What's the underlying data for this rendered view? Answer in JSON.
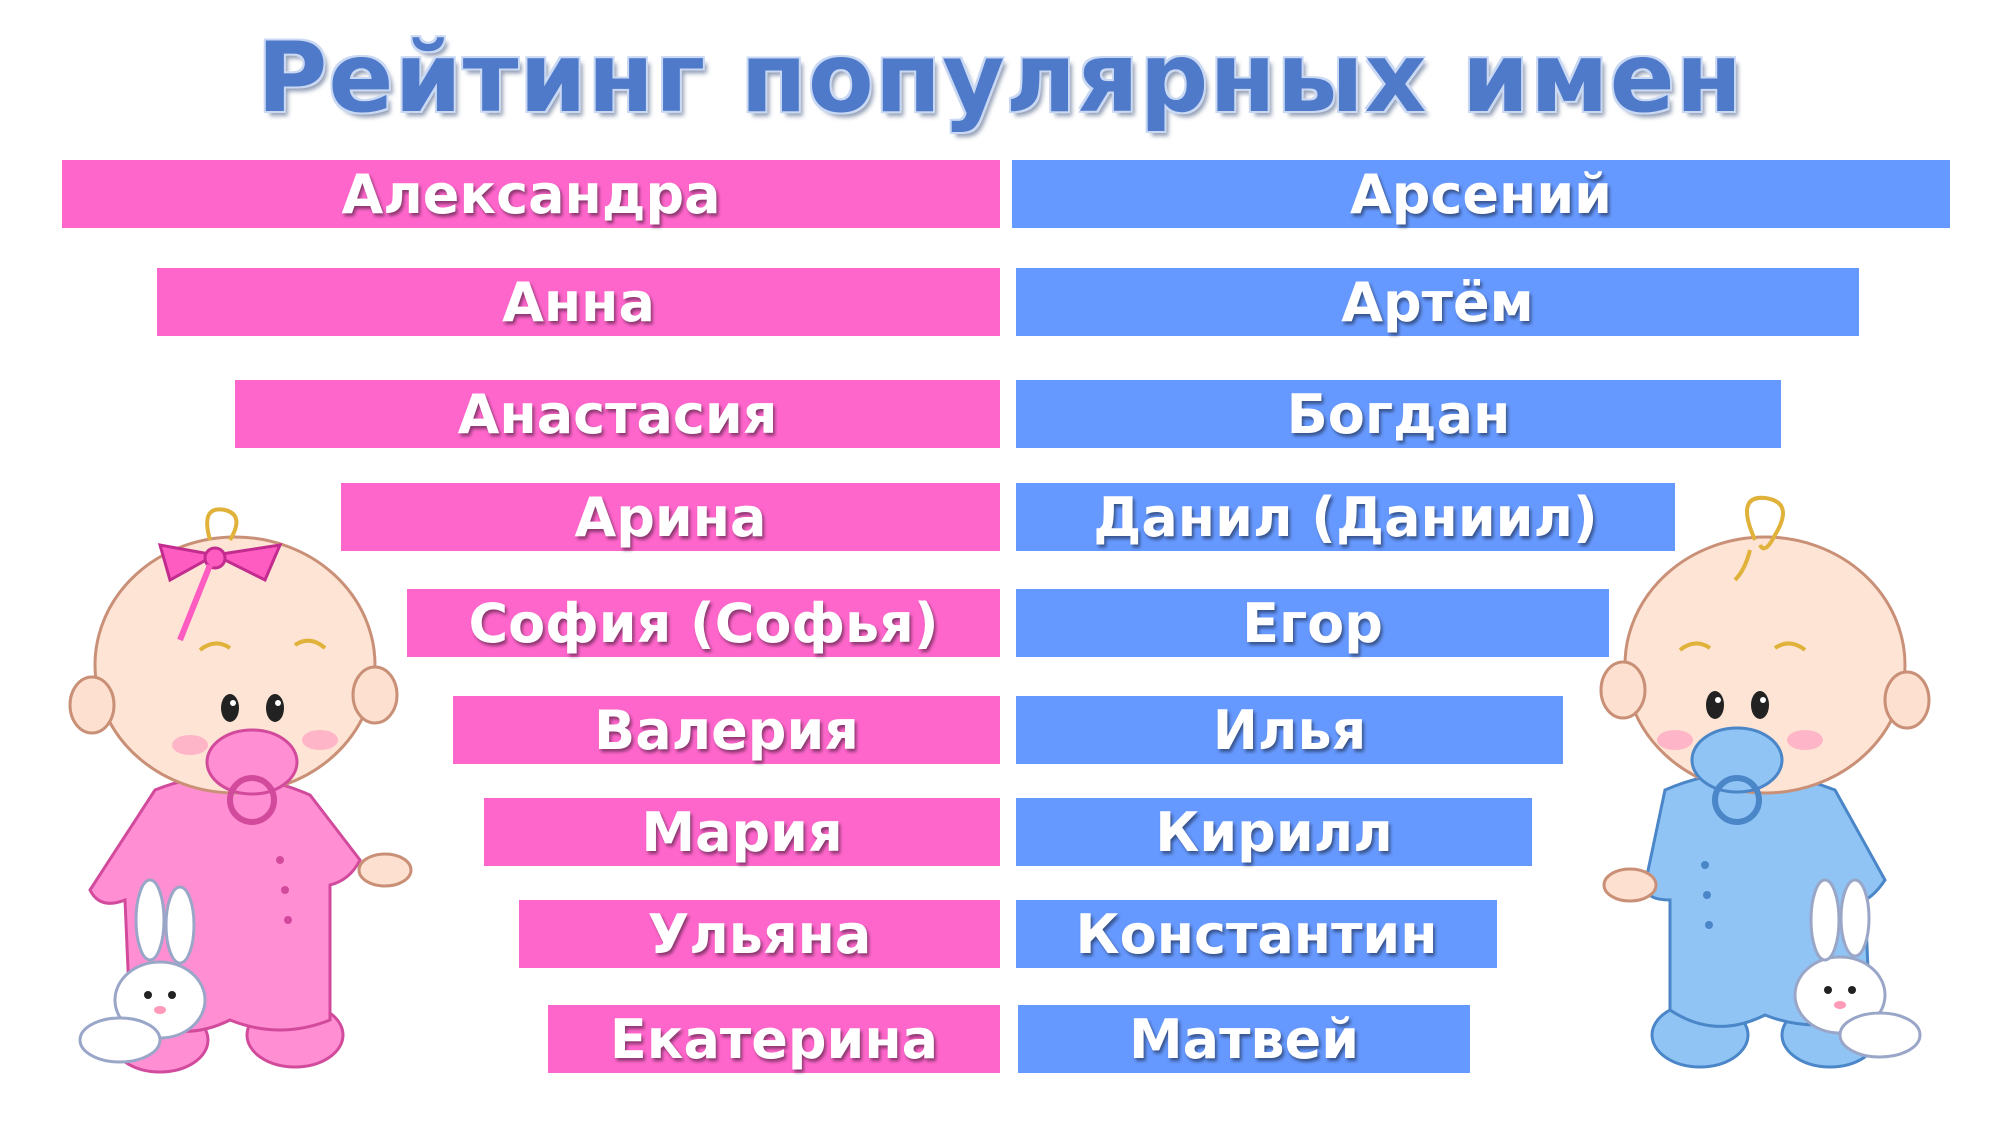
{
  "title": "Рейтинг популярных имен",
  "colors": {
    "girl_bar": "#ff66cc",
    "boy_bar": "#6699ff",
    "title": "#4f79c9"
  },
  "girl_names": [
    "Александра",
    "Анна",
    "Анастасия",
    "Арина",
    "София (Софья)",
    "Валерия",
    "Мария",
    "Ульяна",
    "Екатерина"
  ],
  "boy_names": [
    "Арсений",
    "Артём",
    "Богдан",
    "Данил (Даниил)",
    "Егор",
    "Илья",
    "Кирилл",
    "Константин",
    "Матвей"
  ],
  "illustrations": [
    "baby-girl-illustration",
    "baby-boy-illustration"
  ]
}
